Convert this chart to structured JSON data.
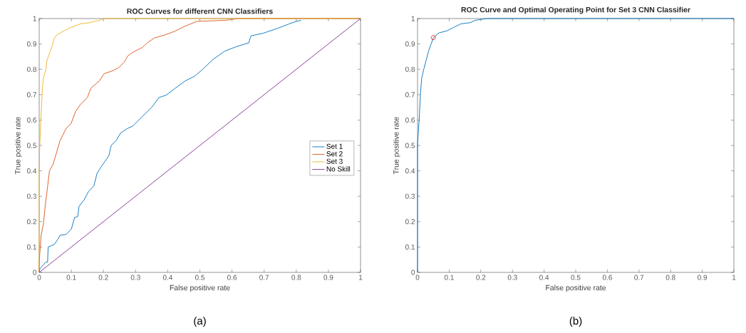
{
  "chart_data": [
    {
      "type": "line",
      "title": "ROC Curves for different CNN Classifiers",
      "xlabel": "False positive rate",
      "ylabel": "True positive rate",
      "xlim": [
        0,
        1
      ],
      "ylim": [
        0,
        1
      ],
      "xticks": [
        0,
        0.1,
        0.2,
        0.3,
        0.4,
        0.5,
        0.6,
        0.7,
        0.8,
        0.9,
        1
      ],
      "yticks": [
        0,
        0.1,
        0.2,
        0.3,
        0.4,
        0.5,
        0.6,
        0.7,
        0.8,
        0.9,
        1
      ],
      "legend": "right",
      "annotations": [
        "(a)"
      ],
      "series": [
        {
          "name": "Set 1",
          "color": "#0072bd",
          "x": [
            0,
            0.002,
            0.02,
            0.026,
            0.028,
            0.047,
            0.058,
            0.065,
            0.084,
            0.1,
            0.11,
            0.12,
            0.124,
            0.14,
            0.154,
            0.17,
            0.18,
            0.195,
            0.217,
            0.224,
            0.24,
            0.254,
            0.276,
            0.291,
            0.321,
            0.35,
            0.373,
            0.395,
            0.424,
            0.454,
            0.484,
            0.506,
            0.541,
            0.578,
            0.615,
            0.652,
            0.659,
            0.697,
            0.741,
            0.778,
            0.8,
            0.815
          ],
          "values": [
            0,
            0.014,
            0.04,
            0.04,
            0.1,
            0.11,
            0.13,
            0.146,
            0.15,
            0.17,
            0.216,
            0.22,
            0.26,
            0.286,
            0.32,
            0.34,
            0.39,
            0.42,
            0.46,
            0.5,
            0.52,
            0.55,
            0.568,
            0.576,
            0.614,
            0.65,
            0.689,
            0.698,
            0.726,
            0.754,
            0.773,
            0.797,
            0.839,
            0.872,
            0.89,
            0.904,
            0.932,
            0.942,
            0.961,
            0.979,
            0.989,
            0.993
          ]
        },
        {
          "name": "Set 2",
          "color": "#d95319",
          "x": [
            0,
            0,
            0.006,
            0.013,
            0.02,
            0.024,
            0.032,
            0.043,
            0.054,
            0.065,
            0.084,
            0.099,
            0.113,
            0.128,
            0.15,
            0.161,
            0.187,
            0.202,
            0.224,
            0.247,
            0.265,
            0.276,
            0.291,
            0.321,
            0.336,
            0.358,
            0.395,
            0.424,
            0.454,
            0.491,
            0.579,
            0.62,
            1
          ],
          "values": [
            0,
            0.04,
            0.146,
            0.19,
            0.277,
            0.315,
            0.4,
            0.425,
            0.472,
            0.52,
            0.567,
            0.586,
            0.633,
            0.661,
            0.689,
            0.726,
            0.754,
            0.783,
            0.792,
            0.806,
            0.829,
            0.853,
            0.867,
            0.886,
            0.904,
            0.923,
            0.937,
            0.951,
            0.97,
            0.989,
            0.993,
            1,
            1
          ]
        },
        {
          "name": "Set 3",
          "color": "#edb120",
          "x": [
            0,
            0,
            0.002,
            0.006,
            0.01,
            0.013,
            0.021,
            0.024,
            0.032,
            0.039,
            0.047,
            0.054,
            0.076,
            0.099,
            0.128,
            0.158,
            0.187,
            0.202,
            1
          ],
          "values": [
            0,
            0.4,
            0.51,
            0.62,
            0.726,
            0.764,
            0.8,
            0.834,
            0.862,
            0.886,
            0.923,
            0.934,
            0.951,
            0.965,
            0.979,
            0.984,
            0.993,
            1,
            1
          ]
        },
        {
          "name": "No Skill",
          "color": "#7e2f8e",
          "x": [
            0,
            1
          ],
          "values": [
            0,
            1
          ]
        }
      ]
    },
    {
      "type": "line",
      "title": "ROC Curve and Optimal Operating Point for Set 3 CNN Classifier",
      "xlabel": "False positive rate",
      "ylabel": "True positive rate",
      "xlim": [
        0,
        1
      ],
      "ylim": [
        0,
        1
      ],
      "xticks": [
        0,
        0.1,
        0.2,
        0.3,
        0.4,
        0.5,
        0.6,
        0.7,
        0.8,
        0.9,
        1
      ],
      "yticks": [
        0,
        0.1,
        0.2,
        0.3,
        0.4,
        0.5,
        0.6,
        0.7,
        0.8,
        0.9,
        1
      ],
      "annotations": [
        "(b)"
      ],
      "series": [
        {
          "color": "#0072bd",
          "x": [
            0,
            0,
            0.005,
            0.009,
            0.013,
            0.02,
            0.028,
            0.035,
            0.043,
            0.05,
            0.058,
            0.069,
            0.092,
            0.114,
            0.137,
            0.167,
            0.182,
            0.22,
            1
          ],
          "values": [
            0,
            0.505,
            0.6,
            0.698,
            0.764,
            0.802,
            0.839,
            0.872,
            0.9,
            0.923,
            0.934,
            0.944,
            0.951,
            0.965,
            0.979,
            0.984,
            0.993,
            1,
            1
          ]
        },
        {
          "type": "scatter",
          "marker": "circle",
          "color": "#ff0000",
          "x": [
            0.05
          ],
          "values": [
            0.925
          ]
        }
      ]
    }
  ]
}
